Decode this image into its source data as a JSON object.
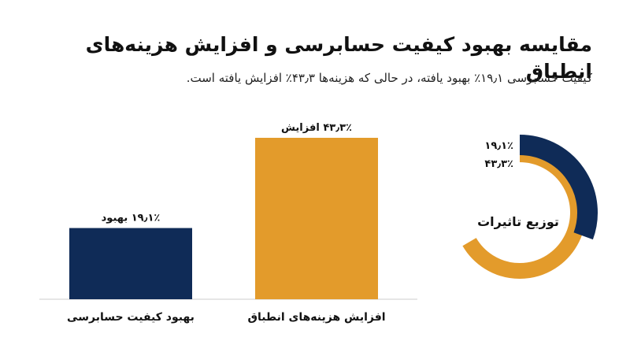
{
  "title": "مقایسه بهبود کیفیت حسابرسی و افزایش هزینه‌های انطباق",
  "subtitle": "کیفیت حسابرسی ۱۹٫۱٪ بهبود یافته، در حالی که هزینه‌ها ۴۳٫۳٪ افزایش یافته است.",
  "colors": {
    "navy": "#0f2b57",
    "orange": "#e39b2b"
  },
  "chart_data": [
    {
      "type": "bar",
      "categories": [
        "بهبود کیفیت حسابرسی",
        "افزایش هزینه‌های انطباق"
      ],
      "values": [
        19.1,
        43.3
      ],
      "data_labels": [
        "۱۹٫۱٪ بهبود",
        "۴۳٫۳٪ افزایش"
      ],
      "colors": [
        "#0f2b57",
        "#e39b2b"
      ],
      "ylim": [
        0,
        43.3
      ],
      "grid": false
    },
    {
      "type": "pie",
      "title": "توزیع تاثیرات",
      "labels": [
        "۱۹٫۱٪",
        "۴۳٫۳٪"
      ],
      "values": [
        19.1,
        43.3
      ],
      "colors": [
        "#0f2b57",
        "#e39b2b"
      ]
    }
  ]
}
